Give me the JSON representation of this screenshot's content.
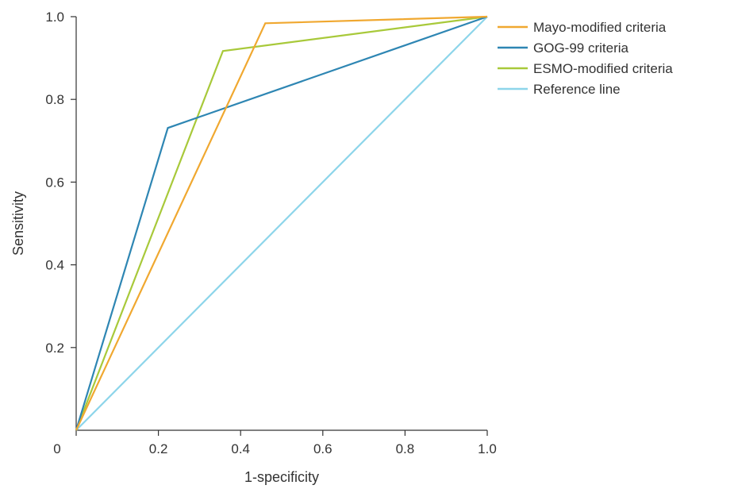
{
  "chart_data": {
    "type": "line",
    "xlabel": "1-specificity",
    "ylabel": "Sensitivity",
    "xlim": [
      0,
      1.0
    ],
    "ylim": [
      0,
      1.0
    ],
    "x_ticks": [
      {
        "value": 0,
        "label": "0"
      },
      {
        "value": 0.2,
        "label": "0.2"
      },
      {
        "value": 0.4,
        "label": "0.4"
      },
      {
        "value": 0.6,
        "label": "0.6"
      },
      {
        "value": 0.8,
        "label": "0.8"
      },
      {
        "value": 1.0,
        "label": "1.0"
      }
    ],
    "y_ticks": [
      {
        "value": 0.2,
        "label": "0.2"
      },
      {
        "value": 0.4,
        "label": "0.4"
      },
      {
        "value": 0.6,
        "label": "0.6"
      },
      {
        "value": 0.8,
        "label": "0.8"
      },
      {
        "value": 1.0,
        "label": "1.0"
      }
    ],
    "grid": false,
    "legend_position": "top-right",
    "series": [
      {
        "name": "Mayo-modified criteria",
        "color": "#f0a830",
        "points": [
          [
            0,
            0
          ],
          [
            0.46,
            0.984
          ],
          [
            1.0,
            1.0
          ]
        ]
      },
      {
        "name": "GOG-99 criteria",
        "color": "#2e86b3",
        "points": [
          [
            0,
            0
          ],
          [
            0.223,
            0.731
          ],
          [
            1.0,
            1.0
          ]
        ]
      },
      {
        "name": "ESMO-modified criteria",
        "color": "#a8c93a",
        "points": [
          [
            0,
            0
          ],
          [
            0.357,
            0.917
          ],
          [
            1.0,
            1.0
          ]
        ]
      },
      {
        "name": "Reference line",
        "color": "#8dd5ea",
        "points": [
          [
            0,
            0
          ],
          [
            1.0,
            1.0
          ]
        ]
      }
    ]
  }
}
